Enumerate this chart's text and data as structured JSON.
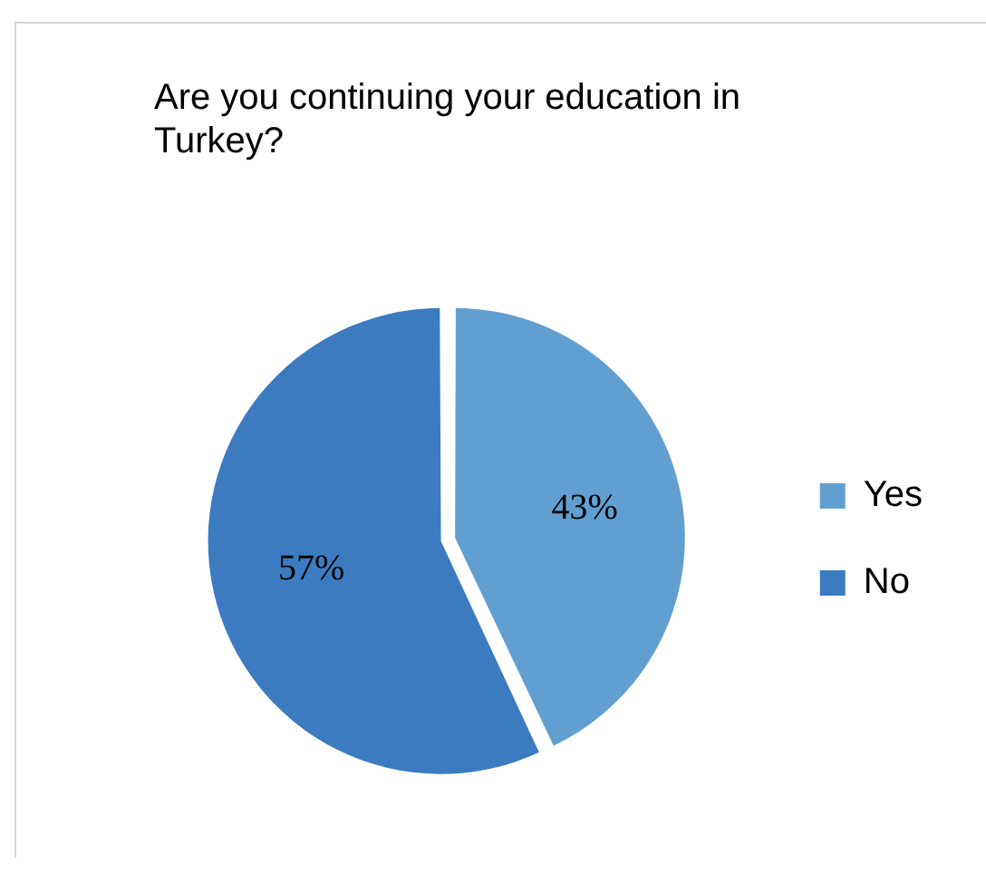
{
  "chart_data": {
    "type": "pie",
    "title": "Are you continuing your education in Turkey?",
    "categories": [
      "Yes",
      "No"
    ],
    "values": [
      43,
      57
    ],
    "colors": [
      "#629fd1",
      "#3c7bc0"
    ],
    "value_labels": [
      "43%",
      "57%"
    ],
    "legend": "right"
  }
}
